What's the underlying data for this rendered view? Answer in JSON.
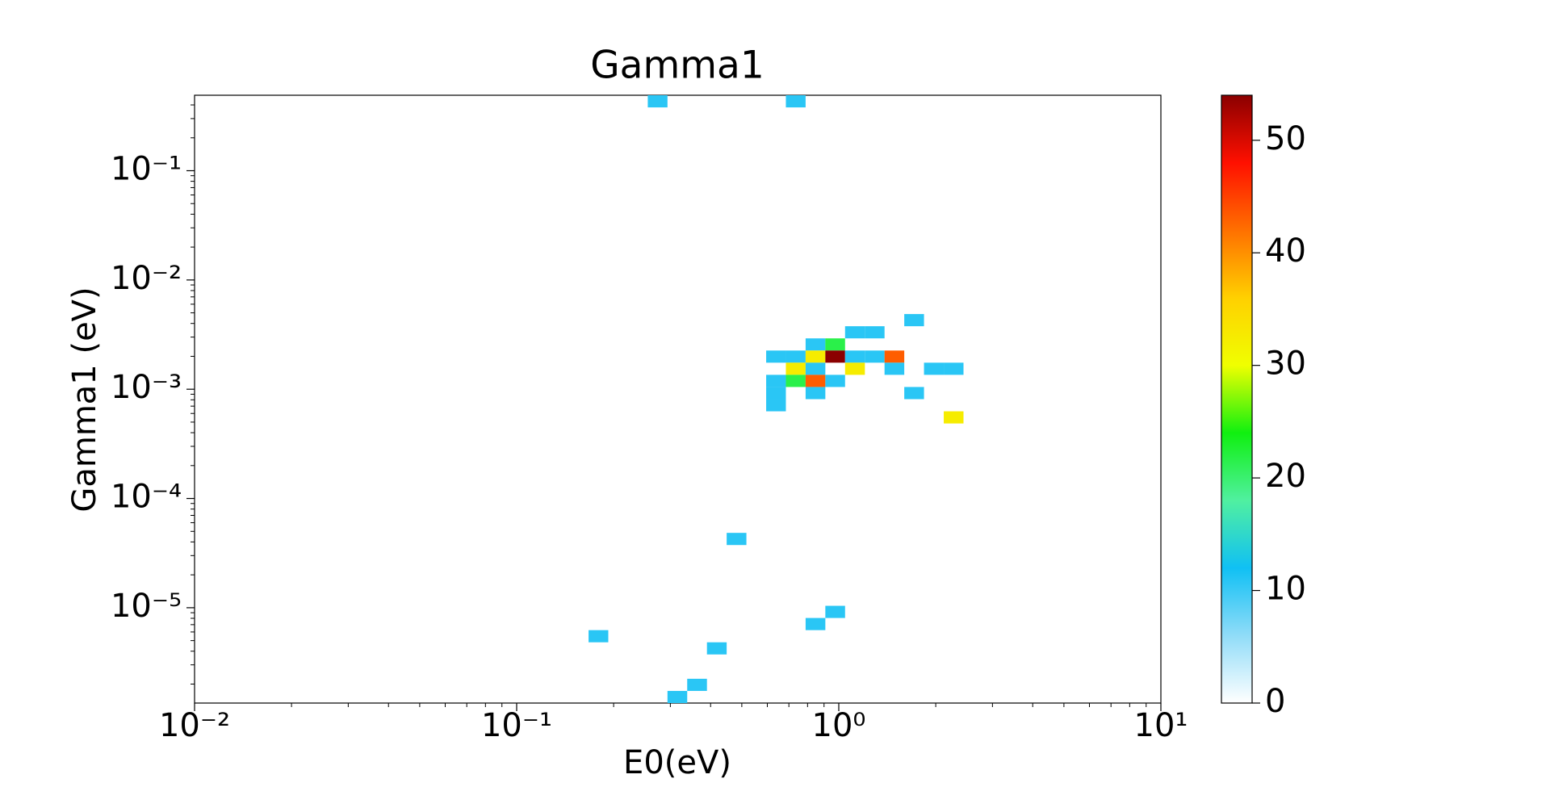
{
  "chart_data": {
    "type": "heatmap",
    "title": "Gamma1",
    "x_label": "E0(eV)",
    "y_label": "Gamma1 (eV)",
    "xscale": "log",
    "yscale": "log",
    "xlim": [
      0.01,
      10
    ],
    "ylim": [
      1.341e-06,
      0.4906
    ],
    "xticks": [
      {
        "value": 0.01,
        "label": "10⁻²"
      },
      {
        "value": 0.1,
        "label": "10⁻¹"
      },
      {
        "value": 1,
        "label": "10⁰"
      },
      {
        "value": 10,
        "label": "10¹"
      }
    ],
    "yticks": [
      {
        "value": 1e-05,
        "label": "10⁻⁵"
      },
      {
        "value": 0.0001,
        "label": "10⁻⁴"
      },
      {
        "value": 0.001,
        "label": "10⁻³"
      },
      {
        "value": 0.01,
        "label": "10⁻²"
      },
      {
        "value": 0.1,
        "label": "10⁻¹"
      }
    ],
    "xminorticks": [
      0.02,
      0.03,
      0.04,
      0.05,
      0.06,
      0.07,
      0.08,
      0.09,
      0.2,
      0.3,
      0.4,
      0.5,
      0.6,
      0.7,
      0.8,
      0.9,
      2,
      3,
      4,
      5,
      6,
      7,
      8,
      9
    ],
    "yminorticks": [
      2e-06,
      3e-06,
      4e-06,
      5e-06,
      6e-06,
      7e-06,
      8e-06,
      9e-06,
      2e-05,
      3e-05,
      4e-05,
      5e-05,
      6e-05,
      7e-05,
      8e-05,
      9e-05,
      0.0002,
      0.0003,
      0.0004,
      0.0005,
      0.0006,
      0.0007,
      0.0008,
      0.0009,
      0.002,
      0.003,
      0.004,
      0.005,
      0.006,
      0.007,
      0.008,
      0.009,
      0.02,
      0.03,
      0.04,
      0.05,
      0.06,
      0.07,
      0.08,
      0.09,
      0.2,
      0.3,
      0.4
    ],
    "clim": [
      0,
      54
    ],
    "cticks": [
      0,
      10,
      20,
      30,
      40,
      50
    ],
    "colormap": [
      "#ffffff",
      "#90dcf8",
      "#10c0f4",
      "#50f0a0",
      "#10f010",
      "#f0ff00",
      "#ffd000",
      "#ff7000",
      "#ff1000",
      "#8b0000"
    ],
    "cells": [
      {
        "x": [
          0.2553,
          0.2939
        ],
        "y": [
          0.3797,
          0.4906
        ],
        "value": 10.8
      },
      {
        "x": [
          0.6851,
          0.7889
        ],
        "y": [
          0.3797,
          0.4906
        ],
        "value": 10.8
      },
      {
        "x": [
          1.597,
          1.839
        ],
        "y": [
          0.003772,
          0.004875
        ],
        "value": 10.8
      },
      {
        "x": [
          1.046,
          1.205
        ],
        "y": [
          0.00292,
          0.003772
        ],
        "value": 10.8
      },
      {
        "x": [
          1.205,
          1.387
        ],
        "y": [
          0.00292,
          0.003772
        ],
        "value": 10.8
      },
      {
        "x": [
          0.7889,
          0.9084
        ],
        "y": [
          0.00226,
          0.00292
        ],
        "value": 10.8
      },
      {
        "x": [
          0.9084,
          1.046
        ],
        "y": [
          0.00226,
          0.00292
        ],
        "value": 21.6
      },
      {
        "x": [
          0.5951,
          0.6851
        ],
        "y": [
          0.001749,
          0.00226
        ],
        "value": 10.8
      },
      {
        "x": [
          0.6851,
          0.7889
        ],
        "y": [
          0.001749,
          0.00226
        ],
        "value": 10.8
      },
      {
        "x": [
          0.7889,
          0.9084
        ],
        "y": [
          0.001749,
          0.00226
        ],
        "value": 32.4
      },
      {
        "x": [
          0.9084,
          1.046
        ],
        "y": [
          0.001749,
          0.00226
        ],
        "value": 54
      },
      {
        "x": [
          1.046,
          1.205
        ],
        "y": [
          0.001749,
          0.00226
        ],
        "value": 10.8
      },
      {
        "x": [
          1.205,
          1.387
        ],
        "y": [
          0.001749,
          0.00226
        ],
        "value": 10.8
      },
      {
        "x": [
          1.387,
          1.597
        ],
        "y": [
          0.001749,
          0.00226
        ],
        "value": 43.2
      },
      {
        "x": [
          0.6851,
          0.7889
        ],
        "y": [
          0.001354,
          0.001749
        ],
        "value": 32.4
      },
      {
        "x": [
          0.7889,
          0.9084
        ],
        "y": [
          0.001354,
          0.001749
        ],
        "value": 10.8
      },
      {
        "x": [
          1.046,
          1.205
        ],
        "y": [
          0.001354,
          0.001749
        ],
        "value": 32.4
      },
      {
        "x": [
          1.387,
          1.597
        ],
        "y": [
          0.001354,
          0.001749
        ],
        "value": 10.8
      },
      {
        "x": [
          1.839,
          2.118
        ],
        "y": [
          0.001354,
          0.001749
        ],
        "value": 10.8
      },
      {
        "x": [
          2.118,
          2.439
        ],
        "y": [
          0.001354,
          0.001749
        ],
        "value": 10.8
      },
      {
        "x": [
          0.5951,
          0.6851
        ],
        "y": [
          0.001048,
          0.001354
        ],
        "value": 10.8
      },
      {
        "x": [
          0.6851,
          0.7889
        ],
        "y": [
          0.001048,
          0.001354
        ],
        "value": 21.6
      },
      {
        "x": [
          0.7889,
          0.9084
        ],
        "y": [
          0.001048,
          0.001354
        ],
        "value": 43.2
      },
      {
        "x": [
          0.9084,
          1.046
        ],
        "y": [
          0.001048,
          0.001354
        ],
        "value": 10.8
      },
      {
        "x": [
          0.5951,
          0.6851
        ],
        "y": [
          0.000811,
          0.001048
        ],
        "value": 10.8
      },
      {
        "x": [
          0.7889,
          0.9084
        ],
        "y": [
          0.000811,
          0.001048
        ],
        "value": 10.8
      },
      {
        "x": [
          1.597,
          1.839
        ],
        "y": [
          0.000811,
          0.001048
        ],
        "value": 10.8
      },
      {
        "x": [
          0.5951,
          0.6851
        ],
        "y": [
          0.0006277,
          0.000811
        ],
        "value": 10.8
      },
      {
        "x": [
          2.118,
          2.439
        ],
        "y": [
          0.0004858,
          0.0006277
        ],
        "value": 32.4
      },
      {
        "x": [
          0.4487,
          0.5167
        ],
        "y": [
          3.748e-05,
          4.843e-05
        ],
        "value": 10.8
      },
      {
        "x": [
          0.9084,
          1.046
        ],
        "y": [
          8.057e-06,
          1.041e-05
        ],
        "value": 10.8
      },
      {
        "x": [
          0.7889,
          0.9084
        ],
        "y": [
          6.235e-06,
          8.057e-06
        ],
        "value": 10.8
      },
      {
        "x": [
          0.1672,
          0.1925
        ],
        "y": [
          4.826e-06,
          6.235e-06
        ],
        "value": 10.8
      },
      {
        "x": [
          0.3897,
          0.4487
        ],
        "y": [
          3.736e-06,
          4.826e-06
        ],
        "value": 10.8
      },
      {
        "x": [
          0.3384,
          0.3897
        ],
        "y": [
          1.732e-06,
          2.237e-06
        ],
        "value": 10.8
      },
      {
        "x": [
          0.2939,
          0.3384
        ],
        "y": [
          1.341e-06,
          1.732e-06
        ],
        "value": 10.8
      }
    ]
  }
}
